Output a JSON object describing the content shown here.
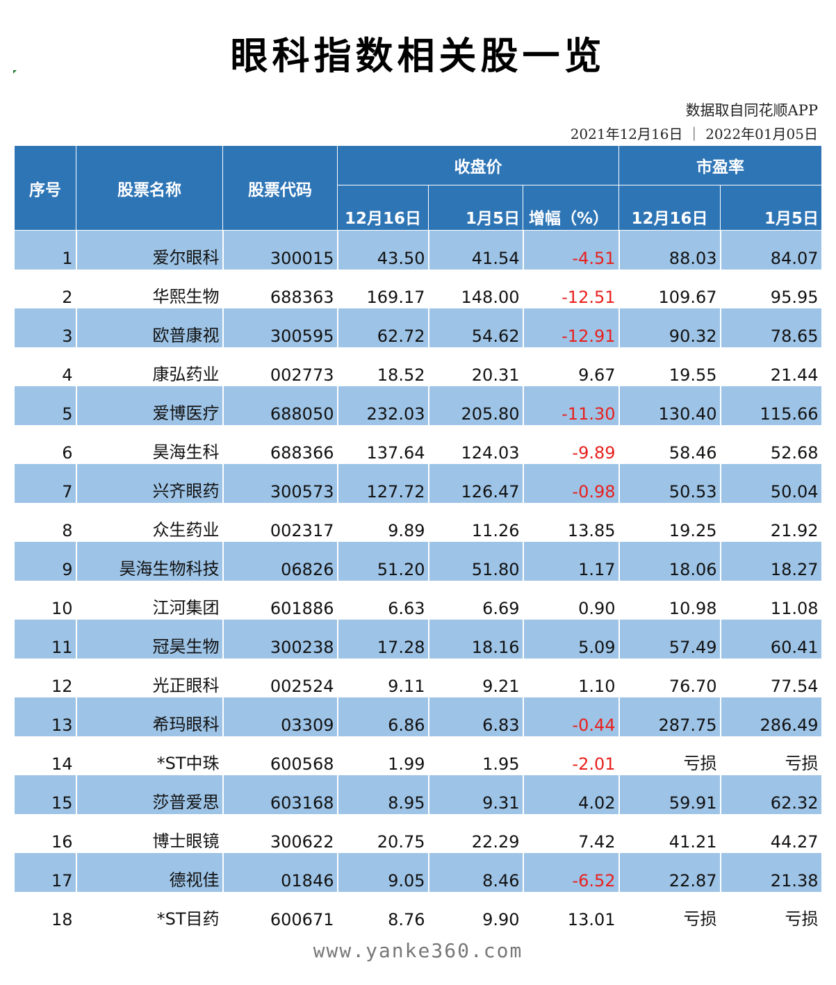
{
  "title": "眼科指数相关股一览",
  "source": "数据取自同花顺APP",
  "dates": "2021年12月16日 ｜ 2022年01月05日",
  "headers": {
    "index": "序号",
    "name": "股票名称",
    "code": "股票代码",
    "close_group": "收盘价",
    "pe_group": "市盈率",
    "close_d1": "12月16日",
    "close_d2": "1月5日",
    "change": "增幅（%）",
    "pe_d1": "12月16日",
    "pe_d2": "1月5日"
  },
  "colors": {
    "header_bg": "#2e75b6",
    "band_bg": "#9dc3e6",
    "negative": "#e8201d"
  },
  "rows": [
    {
      "idx": "1",
      "name": "爱尔眼科",
      "code": "300015",
      "c1": "43.50",
      "c2": "41.54",
      "chg": "-4.51",
      "pe1": "88.03",
      "pe2": "84.07"
    },
    {
      "idx": "2",
      "name": "华熙生物",
      "code": "688363",
      "c1": "169.17",
      "c2": "148.00",
      "chg": "-12.51",
      "pe1": "109.67",
      "pe2": "95.95"
    },
    {
      "idx": "3",
      "name": "欧普康视",
      "code": "300595",
      "c1": "62.72",
      "c2": "54.62",
      "chg": "-12.91",
      "pe1": "90.32",
      "pe2": "78.65"
    },
    {
      "idx": "4",
      "name": "康弘药业",
      "code": "002773",
      "c1": "18.52",
      "c2": "20.31",
      "chg": "9.67",
      "pe1": "19.55",
      "pe2": "21.44"
    },
    {
      "idx": "5",
      "name": "爱博医疗",
      "code": "688050",
      "c1": "232.03",
      "c2": "205.80",
      "chg": "-11.30",
      "pe1": "130.40",
      "pe2": "115.66"
    },
    {
      "idx": "6",
      "name": "昊海生科",
      "code": "688366",
      "c1": "137.64",
      "c2": "124.03",
      "chg": "-9.89",
      "pe1": "58.46",
      "pe2": "52.68"
    },
    {
      "idx": "7",
      "name": "兴齐眼药",
      "code": "300573",
      "c1": "127.72",
      "c2": "126.47",
      "chg": "-0.98",
      "pe1": "50.53",
      "pe2": "50.04"
    },
    {
      "idx": "8",
      "name": "众生药业",
      "code": "002317",
      "c1": "9.89",
      "c2": "11.26",
      "chg": "13.85",
      "pe1": "19.25",
      "pe2": "21.92"
    },
    {
      "idx": "9",
      "name": "昊海生物科技",
      "code": "06826",
      "c1": "51.20",
      "c2": "51.80",
      "chg": "1.17",
      "pe1": "18.06",
      "pe2": "18.27"
    },
    {
      "idx": "10",
      "name": "江河集团",
      "code": "601886",
      "c1": "6.63",
      "c2": "6.69",
      "chg": "0.90",
      "pe1": "10.98",
      "pe2": "11.08"
    },
    {
      "idx": "11",
      "name": "冠昊生物",
      "code": "300238",
      "c1": "17.28",
      "c2": "18.16",
      "chg": "5.09",
      "pe1": "57.49",
      "pe2": "60.41"
    },
    {
      "idx": "12",
      "name": "光正眼科",
      "code": "002524",
      "c1": "9.11",
      "c2": "9.21",
      "chg": "1.10",
      "pe1": "76.70",
      "pe2": "77.54"
    },
    {
      "idx": "13",
      "name": "希玛眼科",
      "code": "03309",
      "c1": "6.86",
      "c2": "6.83",
      "chg": "-0.44",
      "pe1": "287.75",
      "pe2": "286.49"
    },
    {
      "idx": "14",
      "name": "*ST中珠",
      "code": "600568",
      "c1": "1.99",
      "c2": "1.95",
      "chg": "-2.01",
      "pe1": "亏损",
      "pe2": "亏损"
    },
    {
      "idx": "15",
      "name": "莎普爱思",
      "code": "603168",
      "c1": "8.95",
      "c2": "9.31",
      "chg": "4.02",
      "pe1": "59.91",
      "pe2": "62.32"
    },
    {
      "idx": "16",
      "name": "博士眼镜",
      "code": "300622",
      "c1": "20.75",
      "c2": "22.29",
      "chg": "7.42",
      "pe1": "41.21",
      "pe2": "44.27"
    },
    {
      "idx": "17",
      "name": "德视佳",
      "code": "01846",
      "c1": "9.05",
      "c2": "8.46",
      "chg": "-6.52",
      "pe1": "22.87",
      "pe2": "21.38"
    },
    {
      "idx": "18",
      "name": "*ST目药",
      "code": "600671",
      "c1": "8.76",
      "c2": "9.90",
      "chg": "13.01",
      "pe1": "亏损",
      "pe2": "亏损"
    }
  ],
  "footer": "www.yanke360.com"
}
